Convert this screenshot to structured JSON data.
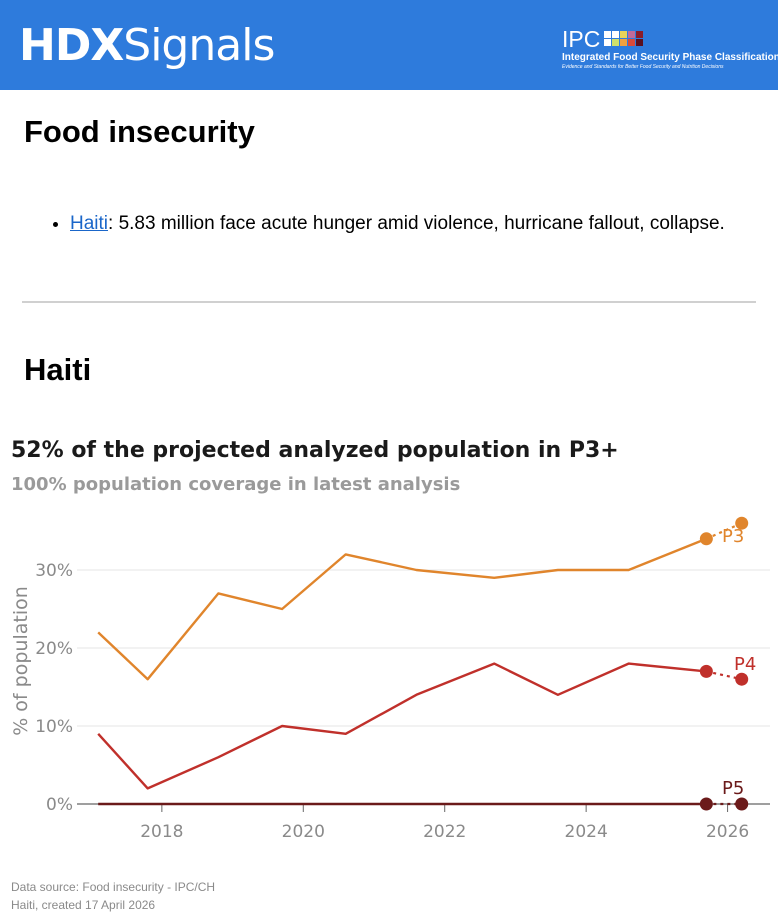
{
  "header": {
    "brand_bold": "HDX",
    "brand_light": "Signals",
    "ipc_abbr": "IPC",
    "ipc_full": "Integrated Food Security Phase Classification",
    "ipc_tagline": "Evidence and Standards for Better Food Security and Nutrition Decisions"
  },
  "section": {
    "title": "Food insecurity",
    "bullets": [
      {
        "link": "Haiti",
        "text": ": 5.83 million face acute hunger amid violence, hurricane fallout, collapse."
      }
    ]
  },
  "country": {
    "title": "Haiti"
  },
  "chart_data": {
    "type": "line",
    "title": "52% of the projected analyzed population in P3+",
    "subtitle": "100% population coverage in latest analysis",
    "ylabel": "% of population",
    "xlabel": "",
    "xlim": [
      2016.8,
      2026.6
    ],
    "ylim": [
      0,
      37
    ],
    "x_ticks": [
      2018,
      2020,
      2022,
      2024,
      2026
    ],
    "x_tick_labels": [
      "2018",
      "2020",
      "2022",
      "2024",
      "2026"
    ],
    "y_ticks": [
      0,
      10,
      20,
      30
    ],
    "y_tick_labels": [
      "0%",
      "10%",
      "20%",
      "30%"
    ],
    "grid": true,
    "series": [
      {
        "name": "P3",
        "color": "#e0852c",
        "x": [
          2017.1,
          2017.8,
          2018.8,
          2019.7,
          2020.6,
          2021.6,
          2022.7,
          2023.6,
          2024.6,
          2025.7
        ],
        "values": [
          22,
          16,
          27,
          25,
          32,
          30,
          29,
          30,
          30,
          34
        ],
        "projection": {
          "x": 2026.2,
          "value": 36
        }
      },
      {
        "name": "P4",
        "color": "#c0302b",
        "x": [
          2017.1,
          2017.8,
          2018.8,
          2019.7,
          2020.6,
          2021.6,
          2022.7,
          2023.6,
          2024.6,
          2025.7
        ],
        "values": [
          9,
          2,
          6,
          10,
          9,
          14,
          18,
          14,
          18,
          17
        ],
        "projection": {
          "x": 2026.2,
          "value": 16
        }
      },
      {
        "name": "P5",
        "color": "#6b1a1a",
        "x": [
          2017.1,
          2017.8,
          2018.8,
          2019.7,
          2020.6,
          2021.6,
          2022.7,
          2023.6,
          2024.6,
          2025.7
        ],
        "values": [
          0,
          0,
          0,
          0,
          0,
          0,
          0,
          0,
          0,
          0
        ],
        "projection": {
          "x": 2026.2,
          "value": 0
        }
      }
    ]
  },
  "footer": {
    "source": "Data source: Food insecurity - IPC/CH",
    "created": "Haiti, created 17 April 2026"
  }
}
